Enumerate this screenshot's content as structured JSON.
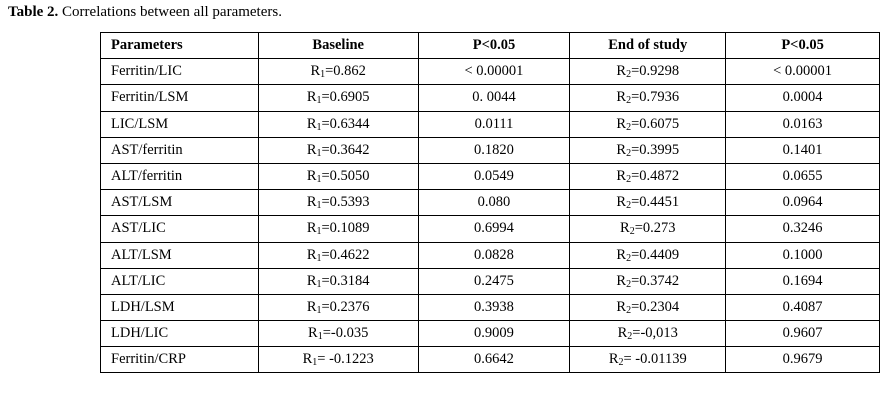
{
  "caption": {
    "label": "Table 2.",
    "text": " Correlations between all parameters."
  },
  "table": {
    "headers": [
      "Parameters",
      "Baseline",
      "P<0.05",
      "End of study",
      "P<0.05"
    ],
    "rows": [
      {
        "param": "Ferritin/LIC",
        "b_letter": "R",
        "b_sub": "1",
        "b_val": "=0.862",
        "p1": "< 0.00001",
        "e_letter": "R",
        "e_sub": "2",
        "e_val": "=0.9298",
        "p2": "< 0.00001"
      },
      {
        "param": "Ferritin/LSM",
        "b_letter": "R",
        "b_sub": "1",
        "b_val": "=0.6905",
        "p1": "0. 0044",
        "e_letter": "R",
        "e_sub": "2",
        "e_val": "=0.7936",
        "p2": "0.0004"
      },
      {
        "param": "LIC/LSM",
        "b_letter": "R",
        "b_sub": "1",
        "b_val": "=0.6344",
        "p1": "0.0111",
        "e_letter": "R",
        "e_sub": "2",
        "e_val": "=0.6075",
        "p2": "0.0163"
      },
      {
        "param": "AST/ferritin",
        "b_letter": "R",
        "b_sub": "1",
        "b_val": "=0.3642",
        "p1": "0.1820",
        "e_letter": "R",
        "e_sub": "2",
        "e_val": "=0.3995",
        "p2": "0.1401"
      },
      {
        "param": "ALT/ferritin",
        "b_letter": "R",
        "b_sub": "1",
        "b_val": "=0.5050",
        "p1": "0.0549",
        "e_letter": "R",
        "e_sub": "2",
        "e_val": "=0.4872",
        "p2": "0.0655"
      },
      {
        "param": "AST/LSM",
        "b_letter": "R",
        "b_sub": "1",
        "b_val": "=0.5393",
        "p1": "0.080",
        "e_letter": "R",
        "e_sub": "2",
        "e_val": "=0.4451",
        "p2": "0.0964"
      },
      {
        "param": "AST/LIC",
        "b_letter": "R",
        "b_sub": "1",
        "b_val": "=0.1089",
        "p1": "0.6994",
        "e_letter": "R",
        "e_sub": "2",
        "e_val": "=0.273",
        "p2": "0.3246"
      },
      {
        "param": "ALT/LSM",
        "b_letter": "R",
        "b_sub": "1",
        "b_val": "=0.4622",
        "p1": "0.0828",
        "e_letter": "R",
        "e_sub": "2",
        "e_val": "=0.4409",
        "p2": "0.1000"
      },
      {
        "param": "ALT/LIC",
        "b_letter": "R",
        "b_sub": "1",
        "b_val": "=0.3184",
        "p1": "0.2475",
        "e_letter": "R",
        "e_sub": "2",
        "e_val": "=0.3742",
        "p2": "0.1694"
      },
      {
        "param": "LDH/LSM",
        "b_letter": "R",
        "b_sub": "1",
        "b_val": "=0.2376",
        "p1": "0.3938",
        "e_letter": "R",
        "e_sub": "2",
        "e_val": "=0.2304",
        "p2": "0.4087"
      },
      {
        "param": "LDH/LIC",
        "b_letter": "R",
        "b_sub": "1",
        "b_val": "=-0.035",
        "p1": "0.9009",
        "e_letter": "R",
        "e_sub": "2",
        "e_val": "=-0,013",
        "p2": "0.9607"
      },
      {
        "param": "Ferritin/CRP",
        "b_letter": "R",
        "b_sub": "1",
        "b_val": "= -0.1223",
        "p1": "0.6642",
        "e_letter": "R",
        "e_sub": "2",
        "e_val": "= -0.01139",
        "p2": "0.9679"
      }
    ]
  }
}
